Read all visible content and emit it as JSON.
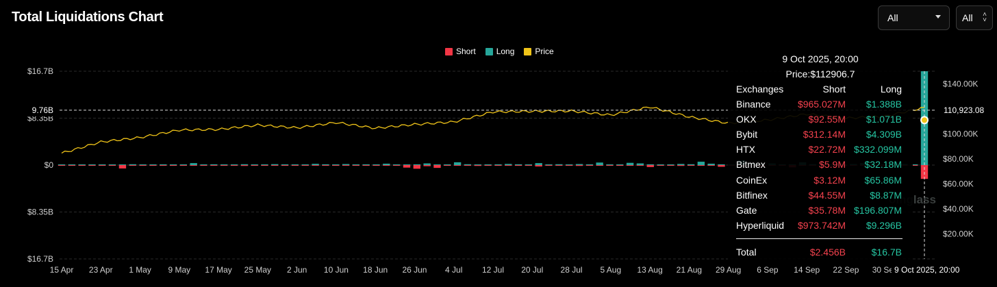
{
  "header": {
    "title": "Total Liquidations Chart"
  },
  "controls": {
    "range_select": "All",
    "coin_select": "All"
  },
  "legend": [
    {
      "label": "Short",
      "color": "#f23645"
    },
    {
      "label": "Long",
      "color": "#26a69a"
    },
    {
      "label": "Price",
      "color": "#f0c419"
    }
  ],
  "chart_data": {
    "type": "bar",
    "title": "Total Liquidations Chart",
    "x_ticks": [
      "15 Apr",
      "23 Apr",
      "1 May",
      "9 May",
      "17 May",
      "25 May",
      "2 Jun",
      "10 Jun",
      "18 Jun",
      "26 Jun",
      "4 Jul",
      "12 Jul",
      "20 Jul",
      "28 Jul",
      "5 Aug",
      "13 Aug",
      "21 Aug",
      "29 Aug",
      "6 Sep",
      "14 Sep",
      "22 Sep",
      "30 Sep",
      "9 Oct 2025, 20:00"
    ],
    "y_left_ticks": [
      "$16.7B",
      "$8.35B",
      "$0",
      "$8.35B",
      "$16.7B"
    ],
    "y_left_range": [
      -16.7,
      16.7
    ],
    "y_left_unit": "billion USD (long up, short down)",
    "y_right_ticks": [
      "$140.00K",
      "$120.00K",
      "$100.00K",
      "$80.00K",
      "$60.00K",
      "$40.00K",
      "$20.00K"
    ],
    "y_right_range": [
      0,
      150000
    ],
    "crosshair": {
      "left_label": "9.76B",
      "right_label": "110,923.08",
      "x_label": "9 Oct 2025, 20:00"
    },
    "grid": true,
    "legend_position": "top-center",
    "series": [
      {
        "name": "Long",
        "color": "#26a69a",
        "note": "bars above zero, small except spike",
        "values": [
          0.08,
          0.07,
          0.1,
          0.09,
          0.12,
          0.1,
          0.08,
          0.15,
          0.11,
          0.09,
          0.13,
          0.1,
          0.12,
          0.35,
          0.11,
          0.14,
          0.1,
          0.09,
          0.15,
          0.12,
          0.11,
          0.16,
          0.13,
          0.1,
          0.12,
          0.22,
          0.14,
          0.11,
          0.18,
          0.1,
          0.13,
          0.12,
          0.25,
          0.11,
          0.1,
          0.14,
          0.3,
          0.12,
          0.11,
          0.5,
          0.15,
          0.12,
          0.1,
          0.13,
          0.2,
          0.14,
          0.11,
          0.35,
          0.12,
          0.15,
          0.1,
          0.18,
          0.13,
          0.45,
          0.11,
          0.12,
          0.4,
          0.3,
          0.14,
          0.1,
          0.12,
          0.2,
          0.15,
          0.6,
          0.25,
          0.14,
          0.12,
          0.85,
          0.2,
          0.13,
          0.3,
          0.15,
          0.14,
          0.5,
          0.18,
          0.12,
          0.15,
          0.13,
          0.2,
          0.35,
          0.14,
          0.12,
          0.55,
          0.2,
          0.13,
          16.7
        ]
      },
      {
        "name": "Short",
        "color": "#f23645",
        "note": "bars below zero",
        "values": [
          0.1,
          0.08,
          0.12,
          0.1,
          0.09,
          0.11,
          0.6,
          0.12,
          0.1,
          0.09,
          0.11,
          0.13,
          0.1,
          0.12,
          0.09,
          0.11,
          0.1,
          0.12,
          0.15,
          0.1,
          0.09,
          0.11,
          0.13,
          0.1,
          0.12,
          0.11,
          0.1,
          0.09,
          0.12,
          0.1,
          0.11,
          0.1,
          0.13,
          0.1,
          0.45,
          0.65,
          0.2,
          0.5,
          0.12,
          0.11,
          0.1,
          0.15,
          0.12,
          0.11,
          0.1,
          0.13,
          0.12,
          0.25,
          0.11,
          0.1,
          0.12,
          0.15,
          0.11,
          0.1,
          0.12,
          0.13,
          0.1,
          0.11,
          0.35,
          0.12,
          0.1,
          0.15,
          0.11,
          0.13,
          0.12,
          0.3,
          0.1,
          0.11,
          0.14,
          0.25,
          0.12,
          0.1,
          0.4,
          0.11,
          0.13,
          0.12,
          0.1,
          0.2,
          0.12,
          0.11,
          0.15,
          0.12,
          0.1,
          0.13,
          0.12,
          2.456
        ]
      },
      {
        "name": "Price",
        "color": "#f0c419",
        "note": "USD, right axis",
        "x": [
          "15 Apr",
          "23 Apr",
          "1 May",
          "9 May",
          "17 May",
          "25 May",
          "2 Jun",
          "10 Jun",
          "18 Jun",
          "26 Jun",
          "4 Jul",
          "12 Jul",
          "20 Jul",
          "28 Jul",
          "5 Aug",
          "13 Aug",
          "21 Aug",
          "29 Aug",
          "6 Sep",
          "14 Sep",
          "22 Sep",
          "30 Sep",
          "9 Oct"
        ],
        "values": [
          84500,
          93500,
          97000,
          103000,
          103500,
          107000,
          104800,
          109000,
          104500,
          107500,
          109500,
          117500,
          118000,
          118200,
          115000,
          121500,
          113500,
          108500,
          111000,
          115800,
          112500,
          114000,
          121000
        ]
      }
    ]
  },
  "tooltip": {
    "date": "9 Oct 2025, 20:00",
    "price": "Price:$112906.7",
    "headers": {
      "exchange": "Exchanges",
      "short": "Short",
      "long": "Long"
    },
    "rows": [
      {
        "exchange": "Binance",
        "short": "$965.027M",
        "long": "$1.388B"
      },
      {
        "exchange": "OKX",
        "short": "$92.55M",
        "long": "$1.071B"
      },
      {
        "exchange": "Bybit",
        "short": "$312.14M",
        "long": "$4.309B"
      },
      {
        "exchange": "HTX",
        "short": "$22.72M",
        "long": "$332.099M"
      },
      {
        "exchange": "Bitmex",
        "short": "$5.9M",
        "long": "$32.18M"
      },
      {
        "exchange": "CoinEx",
        "short": "$3.12M",
        "long": "$65.86M"
      },
      {
        "exchange": "Bitfinex",
        "short": "$44.55M",
        "long": "$8.87M"
      },
      {
        "exchange": "Gate",
        "short": "$35.78M",
        "long": "$196.807M"
      },
      {
        "exchange": "Hyperliquid",
        "short": "$973.742M",
        "long": "$9.296B"
      }
    ],
    "total": {
      "label": "Total",
      "short": "$2.456B",
      "long": "$16.7B"
    }
  },
  "watermark": "oinglass"
}
